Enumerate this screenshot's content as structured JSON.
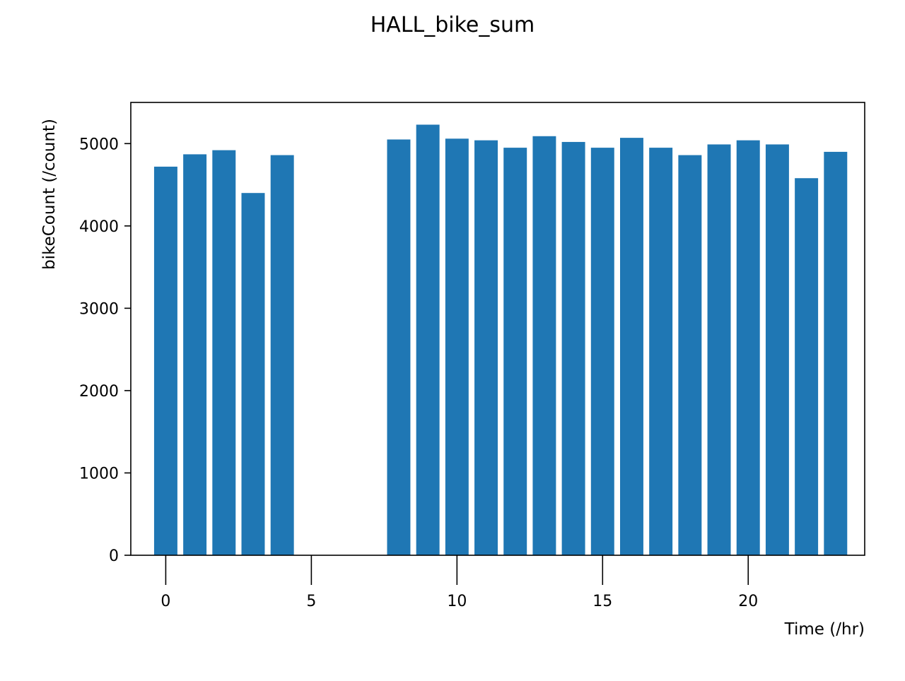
{
  "chart_data": {
    "type": "bar",
    "title": "HALL_bike_sum",
    "xlabel": "Time (/hr)",
    "ylabel": "bikeCount (/count)",
    "x": [
      0,
      1,
      2,
      3,
      4,
      8,
      9,
      10,
      11,
      12,
      13,
      14,
      15,
      16,
      17,
      18,
      19,
      20,
      21,
      22,
      23
    ],
    "values": [
      4720,
      4870,
      4920,
      4400,
      4860,
      5050,
      5230,
      5060,
      5040,
      4950,
      5090,
      5020,
      4950,
      5070,
      4950,
      4860,
      4990,
      5040,
      4990,
      4580,
      4900
    ],
    "xlim": [
      -1.2,
      24.0
    ],
    "ylim": [
      0,
      5500
    ],
    "xticks": [
      0,
      5,
      10,
      15,
      20
    ],
    "yticks": [
      0,
      1000,
      2000,
      3000,
      4000,
      5000
    ],
    "bar_color": "#1f77b4",
    "grid": false,
    "legend": "none"
  }
}
